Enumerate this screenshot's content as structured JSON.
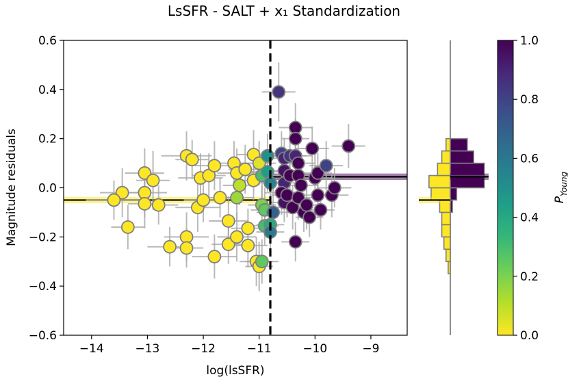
{
  "title": "LsSFR - SALT + x₁ Standardization",
  "chart_data": [
    {
      "type": "scatter",
      "xlabel": "log(lsSFR)",
      "ylabel": "Magnitude residuals",
      "xlim": [
        -14.5,
        -8.35
      ],
      "ylim": [
        -0.6,
        0.6
      ],
      "xticks": [
        -14,
        -13,
        -12,
        -11,
        -10,
        -9
      ],
      "xtick_labels": [
        "−14",
        "−13",
        "−12",
        "−11",
        "−10",
        "−9"
      ],
      "yticks": [
        -0.6,
        -0.4,
        -0.2,
        0.0,
        0.2,
        0.4,
        0.6
      ],
      "ytick_labels": [
        "−0.6",
        "−0.4",
        "−0.2",
        "0.0",
        "0.2",
        "0.4",
        "0.6"
      ],
      "grid": false,
      "divider_x": -10.8,
      "step_means": [
        {
          "region": "young",
          "y": -0.05,
          "band": 0.013,
          "color": "#fde725"
        },
        {
          "region": "old",
          "y": 0.045,
          "band": 0.013,
          "color": "#440154"
        }
      ],
      "points": [
        {
          "x": -13.45,
          "y": -0.02,
          "xerr": 0.4,
          "yerr": 0.1,
          "p": 0.0
        },
        {
          "x": -13.6,
          "y": -0.05,
          "xerr": 0.5,
          "yerr": 0.08,
          "p": 0.0
        },
        {
          "x": -13.35,
          "y": -0.16,
          "xerr": 0.3,
          "yerr": 0.09,
          "p": 0.0
        },
        {
          "x": -13.05,
          "y": 0.06,
          "xerr": 0.35,
          "yerr": 0.1,
          "p": 0.0
        },
        {
          "x": -12.9,
          "y": 0.03,
          "xerr": 0.3,
          "yerr": 0.12,
          "p": 0.0
        },
        {
          "x": -13.05,
          "y": -0.02,
          "xerr": 0.4,
          "yerr": 0.1,
          "p": 0.0
        },
        {
          "x": -13.05,
          "y": -0.065,
          "xerr": 0.3,
          "yerr": 0.1,
          "p": 0.0
        },
        {
          "x": -12.8,
          "y": -0.07,
          "xerr": 0.35,
          "yerr": 0.08,
          "p": 0.0
        },
        {
          "x": -12.6,
          "y": -0.24,
          "xerr": 0.4,
          "yerr": 0.08,
          "p": 0.0
        },
        {
          "x": -12.3,
          "y": 0.13,
          "xerr": 0.45,
          "yerr": 0.1,
          "p": 0.0
        },
        {
          "x": -12.2,
          "y": 0.115,
          "xerr": 0.3,
          "yerr": 0.08,
          "p": 0.0
        },
        {
          "x": -12.3,
          "y": -0.2,
          "xerr": 0.4,
          "yerr": 0.1,
          "p": 0.0
        },
        {
          "x": -12.3,
          "y": -0.245,
          "xerr": 0.3,
          "yerr": 0.08,
          "p": 0.0
        },
        {
          "x": -12.1,
          "y": -0.08,
          "xerr": 0.4,
          "yerr": 0.1,
          "p": 0.0
        },
        {
          "x": -12.0,
          "y": -0.05,
          "xerr": 0.35,
          "yerr": 0.09,
          "p": 0.0
        },
        {
          "x": -12.05,
          "y": 0.04,
          "xerr": 0.4,
          "yerr": 0.1,
          "p": 0.0
        },
        {
          "x": -11.9,
          "y": 0.05,
          "xerr": 0.3,
          "yerr": 0.09,
          "p": 0.0
        },
        {
          "x": -11.8,
          "y": 0.09,
          "xerr": 0.35,
          "yerr": 0.1,
          "p": 0.0
        },
        {
          "x": -11.8,
          "y": -0.28,
          "xerr": 0.4,
          "yerr": 0.09,
          "p": 0.0
        },
        {
          "x": -11.7,
          "y": -0.04,
          "xerr": 0.3,
          "yerr": 0.08,
          "p": 0.0
        },
        {
          "x": -11.55,
          "y": -0.135,
          "xerr": 0.35,
          "yerr": 0.1,
          "p": 0.0
        },
        {
          "x": -11.55,
          "y": -0.23,
          "xerr": 0.3,
          "yerr": 0.08,
          "p": 0.0
        },
        {
          "x": -11.45,
          "y": 0.1,
          "xerr": 0.3,
          "yerr": 0.09,
          "p": 0.0
        },
        {
          "x": -11.4,
          "y": 0.06,
          "xerr": 0.35,
          "yerr": 0.1,
          "p": 0.0
        },
        {
          "x": -11.4,
          "y": -0.04,
          "xerr": 0.3,
          "yerr": 0.09,
          "p": 0.15
        },
        {
          "x": -11.4,
          "y": -0.2,
          "xerr": 0.35,
          "yerr": 0.1,
          "p": 0.0
        },
        {
          "x": -11.35,
          "y": 0.01,
          "xerr": 0.3,
          "yerr": 0.08,
          "p": 0.1
        },
        {
          "x": -11.25,
          "y": 0.075,
          "xerr": 0.3,
          "yerr": 0.1,
          "p": 0.0
        },
        {
          "x": -11.2,
          "y": -0.165,
          "xerr": 0.3,
          "yerr": 0.08,
          "p": 0.0
        },
        {
          "x": -11.2,
          "y": -0.235,
          "xerr": 0.35,
          "yerr": 0.09,
          "p": 0.0
        },
        {
          "x": -11.1,
          "y": 0.135,
          "xerr": 0.3,
          "yerr": 0.1,
          "p": 0.0
        },
        {
          "x": -11.1,
          "y": 0.03,
          "xerr": 0.3,
          "yerr": 0.08,
          "p": 0.0
        },
        {
          "x": -11.05,
          "y": -0.3,
          "xerr": 0.3,
          "yerr": 0.1,
          "p": 0.0
        },
        {
          "x": -11.0,
          "y": 0.1,
          "xerr": 0.3,
          "yerr": 0.09,
          "p": 0.05
        },
        {
          "x": -11.0,
          "y": -0.32,
          "xerr": 0.25,
          "yerr": 0.1,
          "p": 0.0
        },
        {
          "x": -10.95,
          "y": -0.3,
          "xerr": 0.3,
          "yerr": 0.09,
          "p": 0.25
        },
        {
          "x": -10.95,
          "y": -0.07,
          "xerr": 0.25,
          "yerr": 0.08,
          "p": 0.2
        },
        {
          "x": -10.95,
          "y": 0.05,
          "xerr": 0.3,
          "yerr": 0.09,
          "p": 0.3
        },
        {
          "x": -10.9,
          "y": -0.155,
          "xerr": 0.25,
          "yerr": 0.08,
          "p": 0.3
        },
        {
          "x": -10.9,
          "y": -0.09,
          "xerr": 0.25,
          "yerr": 0.09,
          "p": 0.25
        },
        {
          "x": -10.85,
          "y": 0.065,
          "xerr": 0.3,
          "yerr": 0.08,
          "p": 0.45
        },
        {
          "x": -10.85,
          "y": 0.13,
          "xerr": 0.3,
          "yerr": 0.09,
          "p": 0.5
        },
        {
          "x": -10.8,
          "y": 0.02,
          "xerr": 0.25,
          "yerr": 0.1,
          "p": 0.55
        },
        {
          "x": -10.8,
          "y": -0.15,
          "xerr": 0.25,
          "yerr": 0.08,
          "p": 0.4
        },
        {
          "x": -10.8,
          "y": -0.18,
          "xerr": 0.25,
          "yerr": 0.09,
          "p": 0.6
        },
        {
          "x": -10.75,
          "y": -0.1,
          "xerr": 0.3,
          "yerr": 0.1,
          "p": 0.7
        },
        {
          "x": -10.65,
          "y": 0.39,
          "xerr": 0.3,
          "yerr": 0.12,
          "p": 0.85
        },
        {
          "x": -10.6,
          "y": 0.14,
          "xerr": 0.3,
          "yerr": 0.09,
          "p": 0.8
        },
        {
          "x": -10.55,
          "y": 0.12,
          "xerr": 0.3,
          "yerr": 0.08,
          "p": 0.9
        },
        {
          "x": -10.55,
          "y": 0.07,
          "xerr": 0.25,
          "yerr": 0.09,
          "p": 0.95
        },
        {
          "x": -10.55,
          "y": 0.02,
          "xerr": 0.25,
          "yerr": 0.1,
          "p": 0.9
        },
        {
          "x": -10.6,
          "y": -0.02,
          "xerr": 0.3,
          "yerr": 0.09,
          "p": 1.0
        },
        {
          "x": -10.55,
          "y": -0.06,
          "xerr": 0.25,
          "yerr": 0.08,
          "p": 0.95
        },
        {
          "x": -10.5,
          "y": -0.03,
          "xerr": 0.3,
          "yerr": 0.09,
          "p": 1.0
        },
        {
          "x": -10.45,
          "y": 0.13,
          "xerr": 0.3,
          "yerr": 0.1,
          "p": 0.85
        },
        {
          "x": -10.45,
          "y": 0.05,
          "xerr": 0.25,
          "yerr": 0.08,
          "p": 1.0
        },
        {
          "x": -10.4,
          "y": -0.08,
          "xerr": 0.3,
          "yerr": 0.09,
          "p": 1.0
        },
        {
          "x": -10.35,
          "y": 0.245,
          "xerr": 0.3,
          "yerr": 0.1,
          "p": 1.0
        },
        {
          "x": -10.35,
          "y": 0.2,
          "xerr": 0.25,
          "yerr": 0.08,
          "p": 1.0
        },
        {
          "x": -10.35,
          "y": 0.13,
          "xerr": 0.3,
          "yerr": 0.09,
          "p": 0.9
        },
        {
          "x": -10.3,
          "y": 0.1,
          "xerr": 0.3,
          "yerr": 0.08,
          "p": 1.0
        },
        {
          "x": -10.3,
          "y": 0.05,
          "xerr": 0.25,
          "yerr": 0.1,
          "p": 1.0
        },
        {
          "x": -10.3,
          "y": -0.04,
          "xerr": 0.3,
          "yerr": 0.09,
          "p": 1.0
        },
        {
          "x": -10.35,
          "y": -0.22,
          "xerr": 0.25,
          "yerr": 0.08,
          "p": 1.0
        },
        {
          "x": -10.25,
          "y": 0.01,
          "xerr": 0.3,
          "yerr": 0.09,
          "p": 1.0
        },
        {
          "x": -10.2,
          "y": -0.1,
          "xerr": 0.25,
          "yerr": 0.08,
          "p": 1.0
        },
        {
          "x": -10.15,
          "y": -0.07,
          "xerr": 0.3,
          "yerr": 0.1,
          "p": 1.0
        },
        {
          "x": -10.1,
          "y": -0.12,
          "xerr": 0.25,
          "yerr": 0.08,
          "p": 1.0
        },
        {
          "x": -10.05,
          "y": 0.16,
          "xerr": 0.3,
          "yerr": 0.09,
          "p": 1.0
        },
        {
          "x": -10.0,
          "y": 0.04,
          "xerr": 0.3,
          "yerr": 0.1,
          "p": 1.0
        },
        {
          "x": -9.95,
          "y": 0.06,
          "xerr": 0.25,
          "yerr": 0.08,
          "p": 1.0
        },
        {
          "x": -9.95,
          "y": -0.03,
          "xerr": 0.3,
          "yerr": 0.09,
          "p": 1.0
        },
        {
          "x": -9.9,
          "y": -0.09,
          "xerr": 0.25,
          "yerr": 0.08,
          "p": 1.0
        },
        {
          "x": -9.8,
          "y": 0.09,
          "xerr": 0.3,
          "yerr": 0.1,
          "p": 0.8
        },
        {
          "x": -9.7,
          "y": -0.03,
          "xerr": 0.3,
          "yerr": 0.09,
          "p": 1.0
        },
        {
          "x": -9.65,
          "y": 0.0,
          "xerr": 0.3,
          "yerr": 0.08,
          "p": 1.0
        },
        {
          "x": -9.4,
          "y": 0.17,
          "xerr": 0.3,
          "yerr": 0.09,
          "p": 1.0
        }
      ]
    },
    {
      "type": "histogram",
      "orientation": "horizontal",
      "bin_edges": [
        -0.35,
        -0.3,
        -0.25,
        -0.2,
        -0.15,
        -0.1,
        -0.05,
        0.0,
        0.05,
        0.1,
        0.15,
        0.2
      ],
      "series": [
        {
          "region": "young",
          "color": "#fde725",
          "counts": [
            0.5,
            1,
            1.5,
            2,
            2,
            2.5,
            4.5,
            5,
            3,
            2,
            1
          ]
        },
        {
          "region": "old",
          "color": "#440154",
          "counts": [
            0,
            0,
            0,
            0,
            0,
            0.5,
            1.5,
            8,
            8,
            5.5,
            4
          ]
        }
      ],
      "count_max": 9,
      "ylim": [
        -0.6,
        0.6
      ]
    },
    {
      "type": "colorbar",
      "label": "P",
      "label_subscript": "Young",
      "range": [
        0,
        1
      ],
      "ticks": [
        0.0,
        0.2,
        0.4,
        0.6,
        0.8,
        1.0
      ],
      "tick_labels": [
        "0.0",
        "0.2",
        "0.4",
        "0.6",
        "0.8",
        "1.0"
      ],
      "colormap": "viridis_r",
      "stops": [
        "#fde725",
        "#b5de2b",
        "#6ece58",
        "#35b779",
        "#1f9e89",
        "#26828e",
        "#31688e",
        "#3e4989",
        "#482878",
        "#440154"
      ]
    }
  ]
}
